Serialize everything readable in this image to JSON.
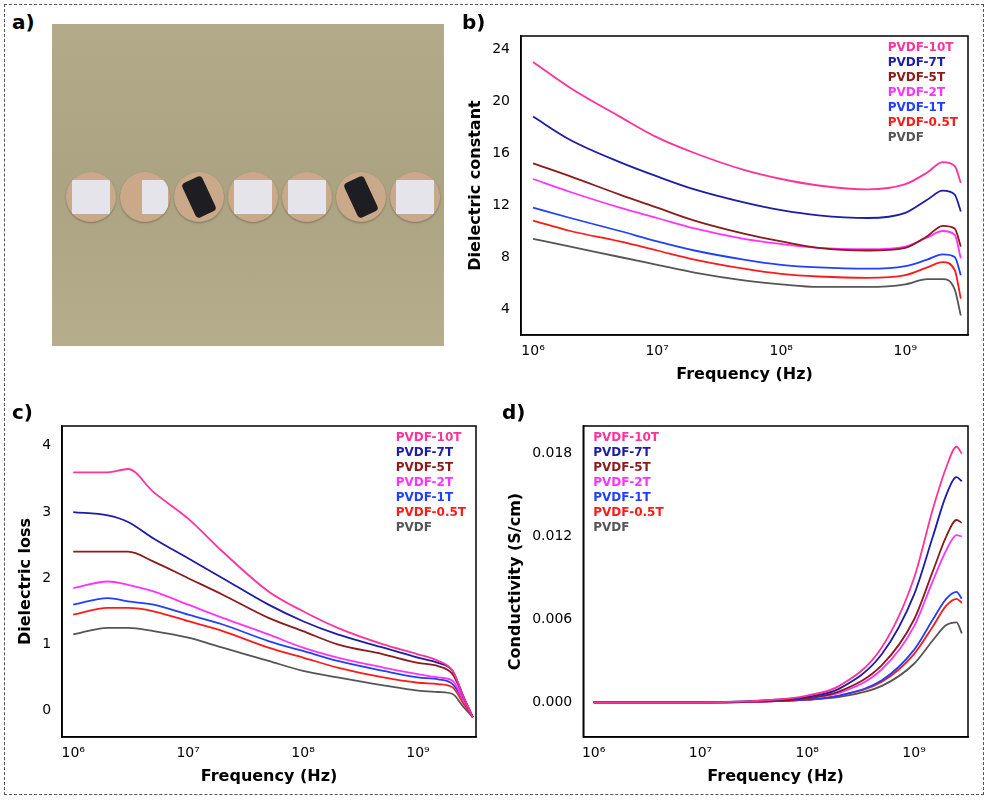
{
  "photo": {
    "panel": "a)"
  },
  "chart_data": [
    {
      "panel": "b)",
      "type": "line",
      "x_label": "Frequency (Hz)",
      "y_label": "Dielectric constant",
      "log": "x",
      "grid": false,
      "legend": "top-right",
      "xlim": [
        800000,
        3200000000
      ],
      "xticks": [
        {
          "value": 1000000,
          "label": "10⁶"
        },
        {
          "value": 10000000,
          "label": "10⁷"
        },
        {
          "value": 100000000,
          "label": "10⁸"
        },
        {
          "value": 1000000000,
          "label": "10⁹"
        }
      ],
      "ylim": [
        2,
        25
      ],
      "yticks": [
        4,
        8,
        12,
        16,
        20,
        24
      ],
      "x": [
        1000000,
        2000000,
        5000000,
        10000000,
        20000000,
        50000000,
        100000000,
        200000000,
        500000000,
        1000000000,
        1500000000,
        2000000000,
        2500000000,
        2800000000
      ],
      "series": [
        {
          "name": "PVDF-10T",
          "color": "#ff3399",
          "values": [
            23,
            21,
            18.8,
            17.2,
            16,
            14.7,
            14,
            13.5,
            13.2,
            13.6,
            14.5,
            15.3,
            15,
            13.7
          ]
        },
        {
          "name": "PVDF-7T",
          "color": "#1c1ca8",
          "values": [
            18.8,
            17,
            15.3,
            14.2,
            13.2,
            12.2,
            11.6,
            11.2,
            11,
            11.4,
            12.4,
            13.1,
            12.8,
            11.5
          ]
        },
        {
          "name": "PVDF-5T",
          "color": "#8b1a1a",
          "values": [
            15.2,
            14.2,
            12.8,
            11.8,
            10.8,
            9.8,
            9.2,
            8.7,
            8.5,
            8.7,
            9.6,
            10.4,
            10.2,
            8.8
          ]
        },
        {
          "name": "PVDF-2T",
          "color": "#ff33ff",
          "values": [
            14,
            13,
            11.8,
            11,
            10.2,
            9.4,
            9,
            8.7,
            8.6,
            8.8,
            9.5,
            10,
            9.7,
            7.9
          ]
        },
        {
          "name": "PVDF-1T",
          "color": "#2040ff",
          "values": [
            11.8,
            11,
            10,
            9.2,
            8.5,
            7.8,
            7.4,
            7.2,
            7.1,
            7.3,
            7.8,
            8.2,
            8,
            6.6
          ]
        },
        {
          "name": "PVDF-0.5T",
          "color": "#ff1a1a",
          "values": [
            10.8,
            10,
            9.2,
            8.5,
            7.8,
            7.1,
            6.7,
            6.5,
            6.4,
            6.6,
            7.2,
            7.6,
            7,
            4.8
          ]
        },
        {
          "name": "PVDF",
          "color": "#555555",
          "values": [
            9.4,
            8.8,
            8,
            7.4,
            6.8,
            6.2,
            5.9,
            5.7,
            5.7,
            5.9,
            6.3,
            6.3,
            5.5,
            3.5
          ]
        }
      ]
    },
    {
      "panel": "c)",
      "type": "line",
      "x_label": "Frequency (Hz)",
      "y_label": "Dielectric loss",
      "log": "x",
      "grid": false,
      "legend": "top-right",
      "xlim": [
        800000,
        3200000000
      ],
      "xticks": [
        {
          "value": 1000000,
          "label": "10⁶"
        },
        {
          "value": 10000000,
          "label": "10⁷"
        },
        {
          "value": 100000000,
          "label": "10⁸"
        },
        {
          "value": 1000000000,
          "label": "10⁹"
        }
      ],
      "ylim": [
        -0.4,
        4.3
      ],
      "yticks": [
        0,
        1,
        2,
        3,
        4
      ],
      "x": [
        1000000,
        2000000,
        3000000,
        5000000,
        10000000,
        20000000,
        50000000,
        100000000,
        200000000,
        500000000,
        1000000000,
        1500000000,
        2000000000,
        2500000000,
        3000000000
      ],
      "series": [
        {
          "name": "PVDF-10T",
          "color": "#ff3399",
          "values": [
            3.6,
            3.6,
            3.65,
            3.3,
            2.9,
            2.4,
            1.8,
            1.5,
            1.25,
            1.0,
            0.85,
            0.75,
            0.6,
            0.2,
            -0.1
          ]
        },
        {
          "name": "PVDF-7T",
          "color": "#1c1ca8",
          "values": [
            3.0,
            2.95,
            2.85,
            2.6,
            2.3,
            2.0,
            1.6,
            1.35,
            1.15,
            0.95,
            0.8,
            0.72,
            0.6,
            0.2,
            -0.1
          ]
        },
        {
          "name": "PVDF-5T",
          "color": "#8b1a1a",
          "values": [
            2.4,
            2.4,
            2.4,
            2.25,
            2.0,
            1.75,
            1.4,
            1.2,
            1.0,
            0.85,
            0.72,
            0.67,
            0.55,
            0.2,
            -0.1
          ]
        },
        {
          "name": "PVDF-2T",
          "color": "#ff33ff",
          "values": [
            1.85,
            1.95,
            1.9,
            1.8,
            1.6,
            1.4,
            1.15,
            0.95,
            0.8,
            0.65,
            0.55,
            0.5,
            0.45,
            0.15,
            -0.1
          ]
        },
        {
          "name": "PVDF-1T",
          "color": "#2040ff",
          "values": [
            1.6,
            1.7,
            1.65,
            1.6,
            1.45,
            1.3,
            1.05,
            0.9,
            0.75,
            0.6,
            0.5,
            0.47,
            0.4,
            0.15,
            -0.1
          ]
        },
        {
          "name": "PVDF-0.5T",
          "color": "#ff1a1a",
          "values": [
            1.45,
            1.55,
            1.55,
            1.5,
            1.35,
            1.2,
            0.95,
            0.8,
            0.65,
            0.5,
            0.42,
            0.4,
            0.35,
            0.1,
            -0.1
          ]
        },
        {
          "name": "PVDF",
          "color": "#555555",
          "values": [
            1.15,
            1.25,
            1.25,
            1.2,
            1.1,
            0.95,
            0.75,
            0.6,
            0.5,
            0.38,
            0.3,
            0.28,
            0.25,
            0.05,
            -0.1
          ]
        }
      ]
    },
    {
      "panel": "d)",
      "type": "line",
      "x_label": "Frequency (Hz)",
      "y_label": "Conductivity (S/cm)",
      "log": "x",
      "grid": false,
      "legend": "top-left",
      "xlim": [
        800000,
        3200000000
      ],
      "xticks": [
        {
          "value": 1000000,
          "label": "10⁶"
        },
        {
          "value": 10000000,
          "label": "10⁷"
        },
        {
          "value": 100000000,
          "label": "10⁸"
        },
        {
          "value": 1000000000,
          "label": "10⁹"
        }
      ],
      "ylim": [
        -0.0025,
        0.02
      ],
      "yticks": [
        {
          "value": 0,
          "label": "0.000"
        },
        {
          "value": 0.006,
          "label": "0.006"
        },
        {
          "value": 0.012,
          "label": "0.012"
        },
        {
          "value": 0.018,
          "label": "0.018"
        }
      ],
      "x": [
        1000000,
        10000000,
        50000000,
        100000000,
        200000000,
        500000000,
        1000000000,
        1500000000,
        2000000000,
        2500000000,
        2800000000
      ],
      "series": [
        {
          "name": "PVDF-10T",
          "color": "#ff3399",
          "values": [
            0,
            0,
            0.0002,
            0.0005,
            0.0012,
            0.004,
            0.009,
            0.014,
            0.017,
            0.0185,
            0.018
          ]
        },
        {
          "name": "PVDF-7T",
          "color": "#1c1ca8",
          "values": [
            0,
            0,
            0.0002,
            0.0004,
            0.001,
            0.0035,
            0.0078,
            0.012,
            0.015,
            0.0163,
            0.016
          ]
        },
        {
          "name": "PVDF-5T",
          "color": "#8b1a1a",
          "values": [
            0,
            0,
            0.0001,
            0.0003,
            0.0008,
            0.0027,
            0.006,
            0.0095,
            0.012,
            0.0132,
            0.013
          ]
        },
        {
          "name": "PVDF-2T",
          "color": "#ff33ff",
          "values": [
            0,
            0,
            0.0001,
            0.0003,
            0.0007,
            0.0024,
            0.0055,
            0.0088,
            0.011,
            0.0121,
            0.012
          ]
        },
        {
          "name": "PVDF-1T",
          "color": "#2040ff",
          "values": [
            0,
            0,
            0.0001,
            0.0002,
            0.0005,
            0.0016,
            0.0038,
            0.006,
            0.0075,
            0.008,
            0.0075
          ]
        },
        {
          "name": "PVDF-0.5T",
          "color": "#ff1a1a",
          "values": [
            0,
            0,
            0.0001,
            0.0002,
            0.0005,
            0.0015,
            0.0035,
            0.0055,
            0.007,
            0.0075,
            0.0072
          ]
        },
        {
          "name": "PVDF",
          "color": "#555555",
          "values": [
            0,
            0,
            0.0001,
            0.0002,
            0.0004,
            0.0012,
            0.0028,
            0.0045,
            0.0056,
            0.0058,
            0.005
          ]
        }
      ]
    }
  ]
}
